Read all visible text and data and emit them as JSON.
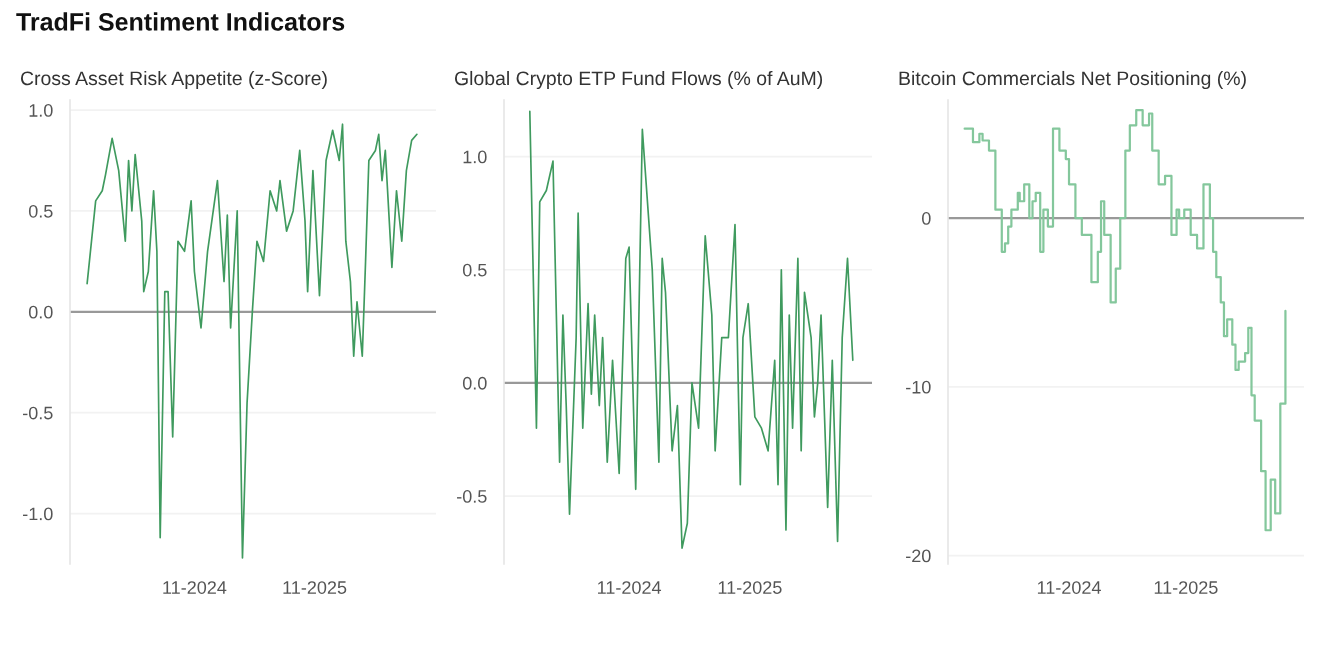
{
  "chart_data": [
    {
      "type": "line",
      "title": "TradFi Sentiment Indicators",
      "subtitle": "Cross Asset Risk Appetite (z-Score)",
      "grid": "y",
      "legend": false,
      "x": [
        "2023-12-11",
        "2024-01-06",
        "2024-01-26",
        "2024-02-05",
        "2024-02-25",
        "2024-03-16",
        "2024-04-05",
        "2024-04-15",
        "2024-04-25",
        "2024-05-05",
        "2024-05-25",
        "2024-05-31",
        "2024-06-14",
        "2024-06-30",
        "2024-07-10",
        "2024-07-20",
        "2024-08-03",
        "2024-08-13",
        "2024-08-27",
        "2024-09-12",
        "2024-10-02",
        "2024-10-22",
        "2024-11-01",
        "2024-11-21",
        "2024-12-11",
        "2025-01-10",
        "2025-01-30",
        "2025-02-09",
        "2025-02-19",
        "2025-03-11",
        "2025-03-27",
        "2025-04-10",
        "2025-04-26",
        "2025-05-10",
        "2025-05-30",
        "2025-06-19",
        "2025-07-09",
        "2025-07-19",
        "2025-08-08",
        "2025-08-28",
        "2025-09-17",
        "2025-10-03",
        "2025-10-11",
        "2025-10-27",
        "2025-11-16",
        "2025-12-06",
        "2025-12-26",
        "2026-01-15",
        "2026-01-25",
        "2026-02-04",
        "2026-02-18",
        "2026-02-28",
        "2026-03-10",
        "2026-03-26",
        "2026-04-05",
        "2026-04-15",
        "2026-05-05",
        "2026-05-15",
        "2026-05-25",
        "2026-06-04",
        "2026-06-24",
        "2026-07-08",
        "2026-07-24",
        "2026-08-07",
        "2026-08-23",
        "2026-09-08"
      ],
      "series": [
        {
          "color": "#3f9a5e",
          "values": [
            0.14,
            0.55,
            0.6,
            0.68,
            0.86,
            0.7,
            0.35,
            0.75,
            0.5,
            0.78,
            0.45,
            0.1,
            0.2,
            0.6,
            0.3,
            -1.12,
            0.1,
            0.1,
            -0.62,
            0.35,
            0.3,
            0.55,
            0.2,
            -0.08,
            0.3,
            0.65,
            0.15,
            0.48,
            -0.08,
            0.5,
            -1.22,
            -0.45,
            0.0,
            0.35,
            0.25,
            0.6,
            0.5,
            0.65,
            0.4,
            0.5,
            0.8,
            0.45,
            0.1,
            0.7,
            0.08,
            0.75,
            0.9,
            0.75,
            0.93,
            0.35,
            0.15,
            -0.22,
            0.05,
            -0.22,
            0.25,
            0.75,
            0.8,
            0.88,
            0.65,
            0.8,
            0.22,
            0.6,
            0.35,
            0.7,
            0.85,
            0.88
          ]
        }
      ],
      "xlim": [
        "2023-10-20",
        "2026-11-05"
      ],
      "xticks": [
        {
          "value": "2024-11-01",
          "label": "11-2024"
        },
        {
          "value": "2025-11-01",
          "label": "11-2025"
        }
      ],
      "yticks": [
        {
          "value": -1.0,
          "label": "-1.0"
        },
        {
          "value": -0.5,
          "label": "-0.5"
        },
        {
          "value": 0.0,
          "label": "0.0"
        },
        {
          "value": 0.5,
          "label": "0.5"
        },
        {
          "value": 1.0,
          "label": "1.0"
        }
      ],
      "ylim": [
        -1.25,
        1.05
      ],
      "ref_lines": [
        {
          "axis": "y",
          "value": 0,
          "color": "#999999"
        }
      ]
    },
    {
      "type": "line",
      "subtitle": "Global Crypto ETP Fund Flows (% of AuM)",
      "grid": "y",
      "legend": false,
      "x": [
        "2024-01-06",
        "2024-01-26",
        "2024-02-05",
        "2024-02-25",
        "2024-03-16",
        "2024-04-05",
        "2024-04-15",
        "2024-04-25",
        "2024-05-05",
        "2024-05-25",
        "2024-05-31",
        "2024-06-14",
        "2024-06-30",
        "2024-07-10",
        "2024-07-20",
        "2024-08-03",
        "2024-08-13",
        "2024-08-27",
        "2024-09-12",
        "2024-10-02",
        "2024-10-22",
        "2024-11-01",
        "2024-11-21",
        "2024-12-11",
        "2025-01-10",
        "2025-01-30",
        "2025-02-09",
        "2025-02-19",
        "2025-03-11",
        "2025-03-27",
        "2025-04-10",
        "2025-04-26",
        "2025-05-10",
        "2025-05-30",
        "2025-06-19",
        "2025-07-09",
        "2025-07-19",
        "2025-08-08",
        "2025-08-28",
        "2025-09-17",
        "2025-10-03",
        "2025-10-11",
        "2025-10-27",
        "2025-11-16",
        "2025-12-06",
        "2025-12-26",
        "2026-01-15",
        "2026-01-25",
        "2026-02-04",
        "2026-02-18",
        "2026-02-28",
        "2026-03-10",
        "2026-03-26",
        "2026-04-05",
        "2026-04-15",
        "2026-05-05",
        "2026-05-15",
        "2026-05-25",
        "2026-06-04",
        "2026-06-24",
        "2026-07-08",
        "2026-07-24",
        "2026-08-07",
        "2026-08-23",
        "2026-09-08"
      ],
      "series": [
        {
          "color": "#3f9a5e",
          "values": [
            1.2,
            -0.2,
            0.8,
            0.85,
            0.98,
            -0.35,
            0.3,
            -0.1,
            -0.58,
            0.2,
            0.75,
            -0.2,
            0.35,
            -0.05,
            0.3,
            -0.1,
            0.2,
            -0.35,
            0.1,
            -0.4,
            0.55,
            0.6,
            -0.47,
            1.12,
            0.5,
            -0.35,
            0.55,
            0.4,
            -0.3,
            -0.1,
            -0.73,
            -0.62,
            0.0,
            -0.2,
            0.65,
            0.3,
            -0.3,
            0.2,
            0.2,
            0.7,
            -0.45,
            0.2,
            0.35,
            -0.15,
            -0.2,
            -0.3,
            0.1,
            -0.45,
            0.5,
            -0.65,
            0.3,
            -0.2,
            0.55,
            -0.3,
            0.4,
            0.2,
            -0.15,
            0.0,
            0.3,
            -0.55,
            0.1,
            -0.7,
            0.2,
            0.55,
            0.1
          ]
        }
      ],
      "xlim": [
        "2023-10-20",
        "2026-11-05"
      ],
      "xticks": [
        {
          "value": "2024-11-01",
          "label": "11-2024"
        },
        {
          "value": "2025-11-01",
          "label": "11-2025"
        }
      ],
      "yticks": [
        {
          "value": -0.5,
          "label": "-0.5"
        },
        {
          "value": 0.0,
          "label": "0.0"
        },
        {
          "value": 0.5,
          "label": "0.5"
        },
        {
          "value": 1.0,
          "label": "1.0"
        }
      ],
      "ylim": [
        -0.8,
        1.25
      ],
      "ref_lines": [
        {
          "axis": "y",
          "value": 0,
          "color": "#999999"
        }
      ]
    },
    {
      "type": "step",
      "subtitle": "Bitcoin Commercials Net Positioning (%)",
      "grid": "y",
      "legend": false,
      "x": [
        "2023-12-11",
        "2024-01-06",
        "2024-01-26",
        "2024-02-05",
        "2024-02-25",
        "2024-03-16",
        "2024-04-05",
        "2024-04-15",
        "2024-04-25",
        "2024-05-05",
        "2024-05-25",
        "2024-05-31",
        "2024-06-14",
        "2024-06-30",
        "2024-07-10",
        "2024-07-20",
        "2024-08-03",
        "2024-08-13",
        "2024-08-27",
        "2024-09-12",
        "2024-10-02",
        "2024-10-22",
        "2024-11-01",
        "2024-11-21",
        "2024-12-11",
        "2025-01-10",
        "2025-01-30",
        "2025-02-09",
        "2025-02-19",
        "2025-03-11",
        "2025-03-27",
        "2025-04-10",
        "2025-04-26",
        "2025-05-10",
        "2025-05-30",
        "2025-06-19",
        "2025-07-09",
        "2025-07-19",
        "2025-08-08",
        "2025-08-28",
        "2025-09-17",
        "2025-10-03",
        "2025-10-11",
        "2025-10-27",
        "2025-11-16",
        "2025-12-06",
        "2025-12-26",
        "2026-01-15",
        "2026-01-25",
        "2026-02-04",
        "2026-02-18",
        "2026-02-28",
        "2026-03-10",
        "2026-03-26",
        "2026-04-05",
        "2026-04-15",
        "2026-05-05",
        "2026-05-15",
        "2026-05-25",
        "2026-06-04",
        "2026-06-24",
        "2026-07-08",
        "2026-07-24",
        "2026-08-07",
        "2026-08-23",
        "2026-09-08"
      ],
      "series": [
        {
          "color": "#84c79c",
          "values": [
            5.3,
            4.5,
            5.0,
            4.6,
            4.0,
            0.5,
            -2.0,
            -1.5,
            -0.5,
            0.5,
            1.5,
            1.0,
            2.0,
            0.0,
            1.0,
            1.5,
            -2.0,
            0.5,
            -0.5,
            5.3,
            4.0,
            3.5,
            2.0,
            0.0,
            -1.0,
            -3.8,
            -2.0,
            1.0,
            -1.0,
            -5.0,
            -3.0,
            0.0,
            4.0,
            5.5,
            6.4,
            5.5,
            6.2,
            4.0,
            2.0,
            2.5,
            -1.0,
            0.5,
            0.0,
            0.5,
            -1.0,
            -1.8,
            2.0,
            0.0,
            -2.0,
            -3.5,
            -5.0,
            -7.0,
            -6.0,
            -7.5,
            -9.0,
            -8.5,
            -8.0,
            -6.5,
            -10.5,
            -12.0,
            -15.0,
            -18.5,
            -15.5,
            -17.5,
            -11.0,
            -5.5
          ]
        }
      ],
      "xlim": [
        "2023-10-20",
        "2026-11-05"
      ],
      "xticks": [
        {
          "value": "2024-11-01",
          "label": "11-2024"
        },
        {
          "value": "2025-11-01",
          "label": "11-2025"
        }
      ],
      "ylim": [
        -20.5,
        7
      ],
      "yticks": [
        -20,
        -10,
        0
      ],
      "ref_lines": [
        {
          "axis": "y",
          "value": 0,
          "color": "#999999"
        }
      ]
    }
  ]
}
